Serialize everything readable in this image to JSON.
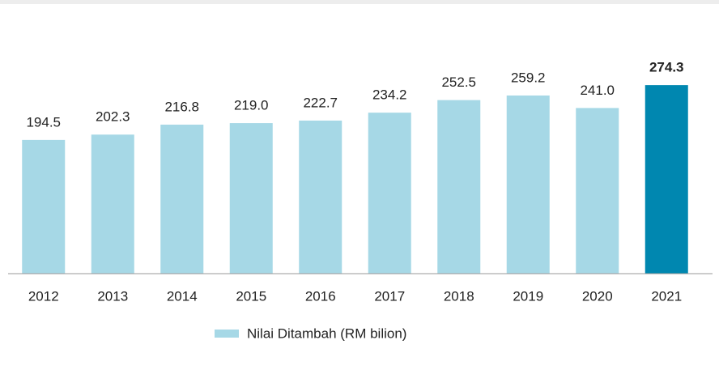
{
  "chart_data": {
    "type": "bar",
    "categories": [
      "2012",
      "2013",
      "2014",
      "2015",
      "2016",
      "2017",
      "2018",
      "2019",
      "2020",
      "2021"
    ],
    "series": [
      {
        "name": "Nilai Ditambah (RM bilion)",
        "color": "#a6d8e6",
        "values": [
          194.5,
          202.3,
          216.8,
          219.0,
          222.7,
          234.2,
          252.5,
          259.2,
          241.0,
          274.3
        ],
        "value_labels": [
          "194.5",
          "202.3",
          "216.8",
          "219.0",
          "222.7",
          "234.2",
          "252.5",
          "259.2",
          "241.0",
          "274.3"
        ],
        "colors": [
          "#a6d8e6",
          "#a6d8e6",
          "#a6d8e6",
          "#a6d8e6",
          "#a6d8e6",
          "#a6d8e6",
          "#a6d8e6",
          "#a6d8e6",
          "#a6d8e6",
          "#0087b0"
        ]
      }
    ],
    "ylim": [
      0,
      300
    ],
    "legend": "bottom"
  }
}
